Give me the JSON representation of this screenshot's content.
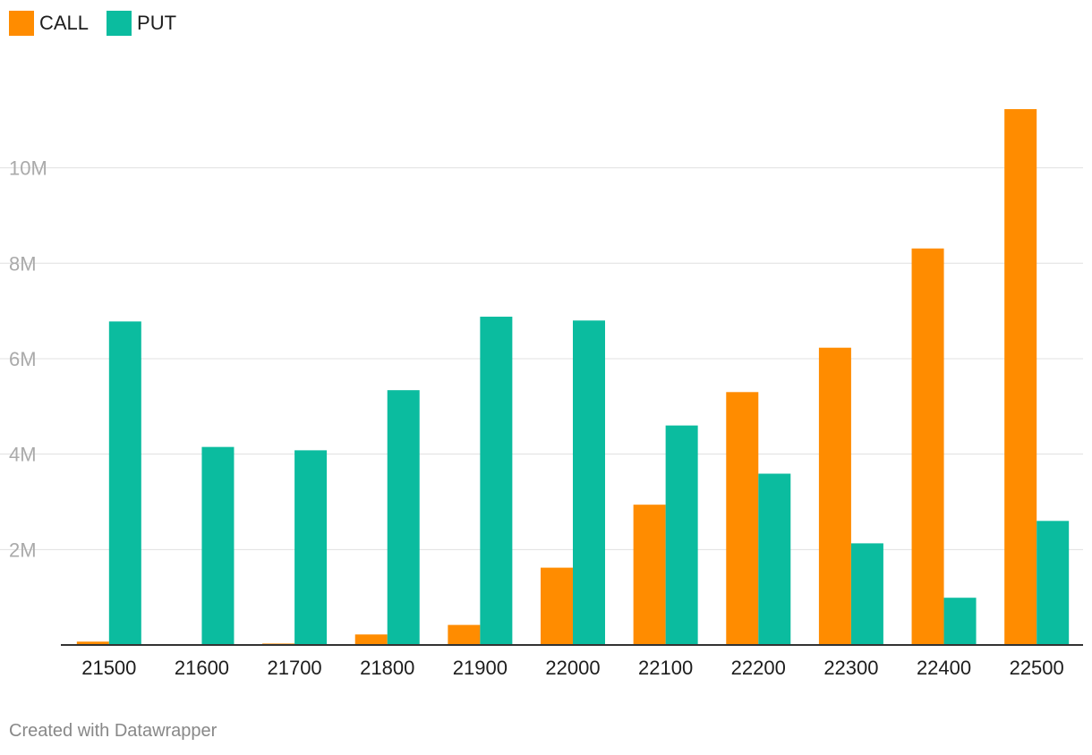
{
  "chart_data": {
    "type": "bar",
    "title": "",
    "xlabel": "",
    "ylabel": "",
    "categories": [
      "21500",
      "21600",
      "21700",
      "21800",
      "21900",
      "22000",
      "22100",
      "22200",
      "22300",
      "22400",
      "22500"
    ],
    "series": [
      {
        "name": "CALL",
        "color": "#ff8c00",
        "values": [
          70000,
          0,
          30000,
          220000,
          420000,
          1620000,
          2940000,
          5300000,
          6230000,
          8310000,
          11230000
        ]
      },
      {
        "name": "PUT",
        "color": "#0bbc9f",
        "values": [
          6780000,
          4150000,
          4080000,
          5340000,
          6880000,
          6800000,
          4600000,
          3590000,
          2130000,
          990000,
          2600000
        ]
      }
    ],
    "ylim": [
      0,
      11230000
    ],
    "y_ticks": [
      {
        "value": 2000000,
        "label": "2M"
      },
      {
        "value": 4000000,
        "label": "4M"
      },
      {
        "value": 6000000,
        "label": "6M"
      },
      {
        "value": 8000000,
        "label": "8M"
      },
      {
        "value": 10000000,
        "label": "10M"
      }
    ],
    "grid": true,
    "legend": "top-left"
  },
  "footer": {
    "credit": "Created with Datawrapper"
  }
}
